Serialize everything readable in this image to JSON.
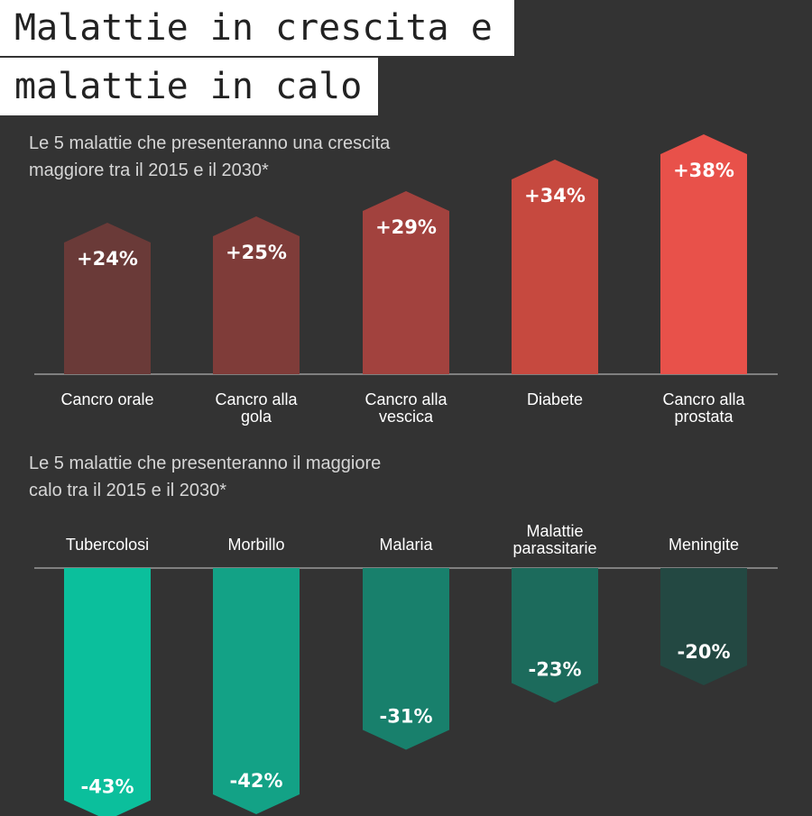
{
  "title": {
    "line1": "Malattie in crescita e",
    "line2": "malattie in calo"
  },
  "chart_data": [
    {
      "type": "bar",
      "subtitle": [
        "Le 5 malattie che presenteranno una crescita",
        "maggiore tra il 2015 e il 2030*"
      ],
      "categories": [
        [
          "Cancro orale"
        ],
        [
          "Cancro alla",
          "gola"
        ],
        [
          "Cancro alla",
          "vescica"
        ],
        [
          "Diabete"
        ],
        [
          "Cancro alla",
          "prostata"
        ]
      ],
      "values": [
        24,
        25,
        29,
        34,
        38
      ],
      "value_labels": [
        "+24%",
        "+25%",
        "+29%",
        "+34%",
        "+38%"
      ],
      "colors": [
        "#6a3a38",
        "#7f3c39",
        "#a2423e",
        "#c6493f",
        "#e8514a"
      ],
      "unit": "%"
    },
    {
      "type": "bar",
      "subtitle": [
        "Le 5 malattie che presenteranno il maggiore",
        "calo tra il 2015 e il 2030*"
      ],
      "categories": [
        [
          "Tubercolosi"
        ],
        [
          "Morbillo"
        ],
        [
          "Malaria"
        ],
        [
          "Malattie",
          "parassitarie"
        ],
        [
          "Meningite"
        ]
      ],
      "values": [
        -43,
        -42,
        -31,
        -23,
        -20
      ],
      "value_labels": [
        "-43%",
        "-42%",
        "-31%",
        "-23%",
        "-20%"
      ],
      "colors": [
        "#0bbf9c",
        "#13a286",
        "#18806c",
        "#1c6b5c",
        "#234842"
      ],
      "unit": "%"
    }
  ]
}
